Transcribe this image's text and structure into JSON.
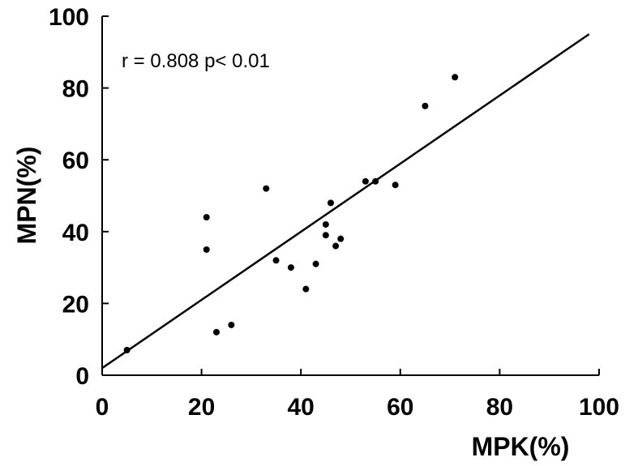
{
  "chart_data": {
    "type": "scatter",
    "xlabel": "MPK(%)",
    "ylabel": "MPN(%)",
    "xlim": [
      0,
      100
    ],
    "ylim": [
      0,
      100
    ],
    "x_ticks": [
      0,
      20,
      40,
      60,
      80,
      100
    ],
    "y_ticks": [
      0,
      20,
      40,
      60,
      80,
      100
    ],
    "grid": false,
    "annotation": "r = 0.808 p< 0.01",
    "points": [
      {
        "x": 5,
        "y": 7
      },
      {
        "x": 21,
        "y": 44
      },
      {
        "x": 21,
        "y": 35
      },
      {
        "x": 23,
        "y": 12
      },
      {
        "x": 26,
        "y": 14
      },
      {
        "x": 33,
        "y": 52
      },
      {
        "x": 35,
        "y": 32
      },
      {
        "x": 38,
        "y": 30
      },
      {
        "x": 41,
        "y": 24
      },
      {
        "x": 43,
        "y": 31
      },
      {
        "x": 45,
        "y": 42
      },
      {
        "x": 45,
        "y": 39
      },
      {
        "x": 46,
        "y": 48
      },
      {
        "x": 47,
        "y": 36
      },
      {
        "x": 48,
        "y": 38
      },
      {
        "x": 53,
        "y": 54
      },
      {
        "x": 55,
        "y": 54
      },
      {
        "x": 59,
        "y": 53
      },
      {
        "x": 65,
        "y": 75
      },
      {
        "x": 71,
        "y": 83
      }
    ],
    "regression_line": {
      "x": [
        0,
        98
      ],
      "y": [
        2,
        95
      ]
    }
  }
}
